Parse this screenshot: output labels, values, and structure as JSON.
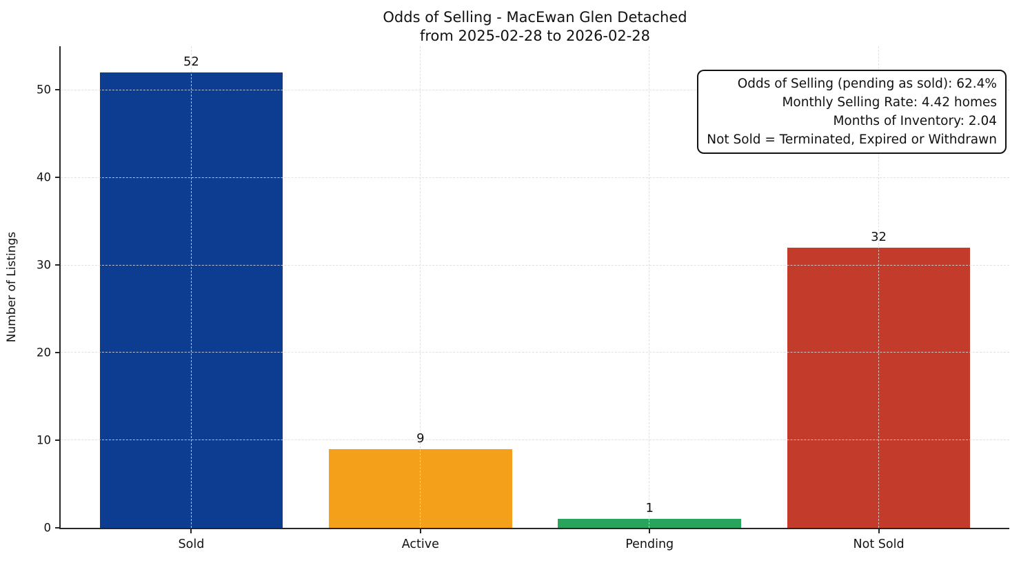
{
  "title": {
    "line1": "Odds of Selling - MacEwan Glen Detached",
    "line2": "from 2025-02-28 to 2026-02-28"
  },
  "annotation": {
    "lines": [
      "Odds of Selling (pending as sold): 62.4%",
      "Monthly Selling Rate: 4.42 homes",
      "Months of Inventory: 2.04",
      "Not Sold = Terminated, Expired or Withdrawn"
    ]
  },
  "chart_data": {
    "type": "bar",
    "title": "Odds of Selling - MacEwan Glen Detached\nfrom 2025-02-28 to 2026-02-28",
    "categories": [
      "Sold",
      "Active",
      "Pending",
      "Not Sold"
    ],
    "values": [
      52,
      9,
      1,
      32
    ],
    "bar_colors": [
      "#0d3d91",
      "#f5a01a",
      "#28a45c",
      "#c23b2b"
    ],
    "value_labels": [
      "52",
      "9",
      "1",
      "32"
    ],
    "xlabel": "",
    "ylabel": "Number of Listings",
    "ylim": [
      0,
      55
    ],
    "yticks": [
      0,
      10,
      20,
      30,
      40,
      50
    ],
    "grid": "dashed horizontal and vertical gridlines over bars",
    "legend": "none",
    "stats": {
      "odds_of_selling_pct": 62.4,
      "monthly_selling_rate_homes": 4.42,
      "months_of_inventory": 2.04,
      "not_sold_definition": "Terminated, Expired or Withdrawn"
    }
  }
}
